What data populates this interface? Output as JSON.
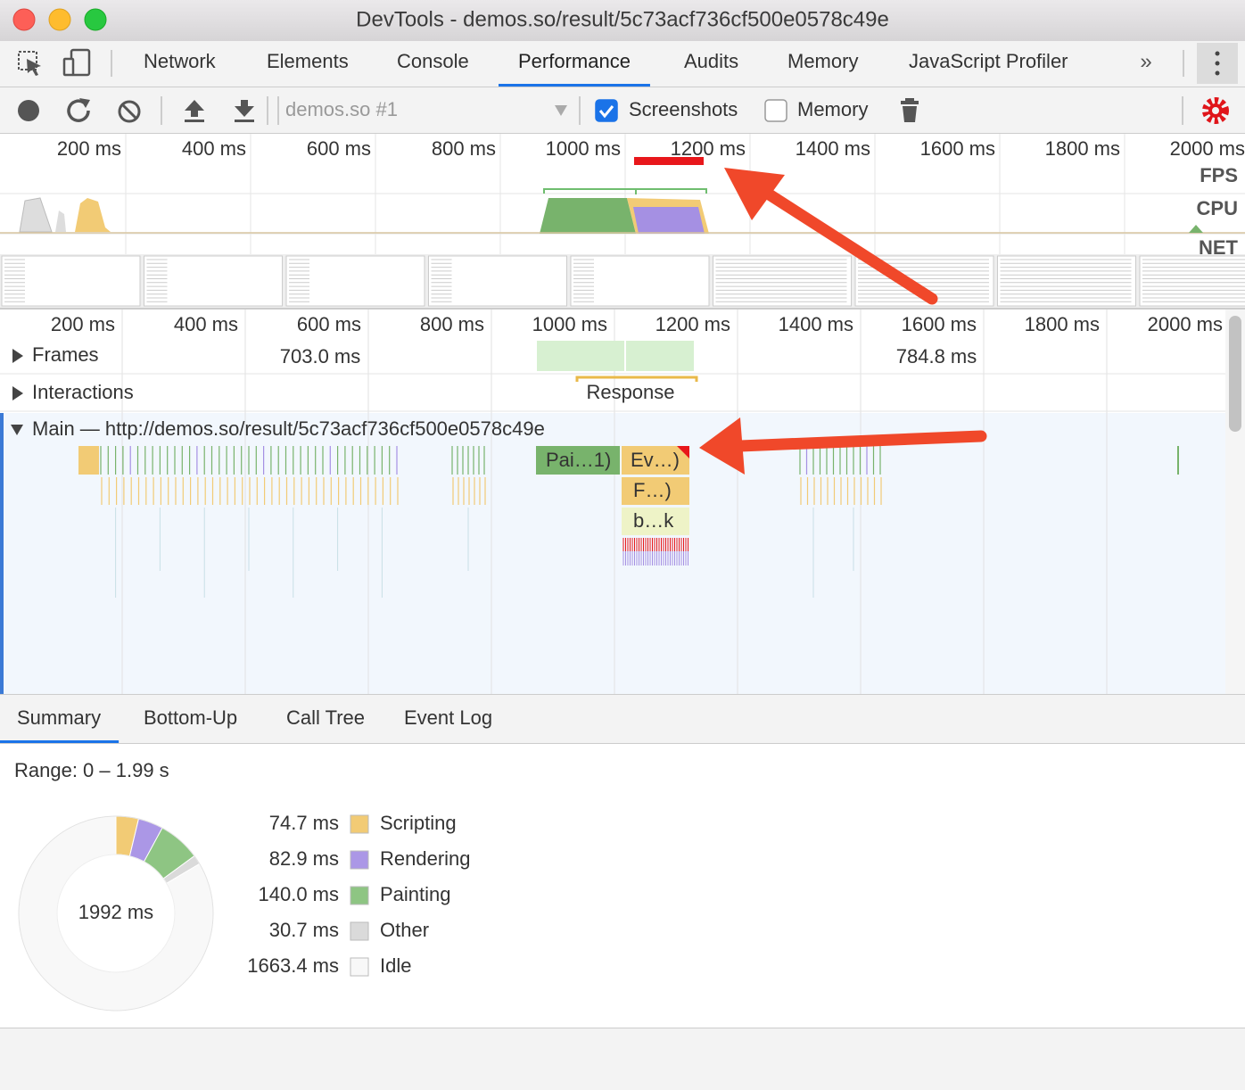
{
  "window": {
    "title": "DevTools - demos.so/result/5c73acf736cf500e0578c49e"
  },
  "tabs": {
    "items": [
      "Network",
      "Elements",
      "Console",
      "Performance",
      "Audits",
      "Memory",
      "JavaScript Profiler"
    ],
    "active_index": 3
  },
  "toolbar": {
    "profile": "demos.so #1",
    "screenshots": "Screenshots",
    "screenshots_checked": true,
    "memory": "Memory",
    "memory_checked": false
  },
  "overview": {
    "ticks": [
      "200 ms",
      "400 ms",
      "600 ms",
      "800 ms",
      "1000 ms",
      "1200 ms",
      "1400 ms",
      "1600 ms",
      "1800 ms",
      "2000 ms"
    ],
    "tracks": [
      "FPS",
      "CPU",
      "NET"
    ]
  },
  "timeline": {
    "ticks": [
      "200 ms",
      "400 ms",
      "600 ms",
      "800 ms",
      "1000 ms",
      "1200 ms",
      "1400 ms",
      "1600 ms",
      "1800 ms",
      "2000 ms"
    ],
    "frames": "Frames",
    "frame_times": [
      "703.0 ms",
      "784.8 ms"
    ],
    "interactions": "Interactions",
    "response": "Response",
    "main": "Main — http://demos.so/result/5c73acf736cf500e0578c49e",
    "events": [
      "Pai…1)",
      "Ev…)",
      "F…)",
      "b…k"
    ]
  },
  "bottom_tabs": {
    "items": [
      "Summary",
      "Bottom-Up",
      "Call Tree",
      "Event Log"
    ],
    "active_index": 0
  },
  "summary": {
    "range": "Range: 0 – 1.99 s",
    "total": "1992 ms",
    "labels": [
      "Scripting",
      "Rendering",
      "Painting",
      "Other",
      "Idle"
    ],
    "values": [
      74.7,
      82.9,
      140.0,
      30.7,
      1663.4
    ],
    "value_labels": [
      "74.7 ms",
      "82.9 ms",
      "140.0 ms",
      "30.7 ms",
      "1663.4 ms"
    ],
    "colors": [
      "#f2cb75",
      "#ab97e6",
      "#8ec583",
      "#dadada",
      "#f8f8f8"
    ]
  }
}
